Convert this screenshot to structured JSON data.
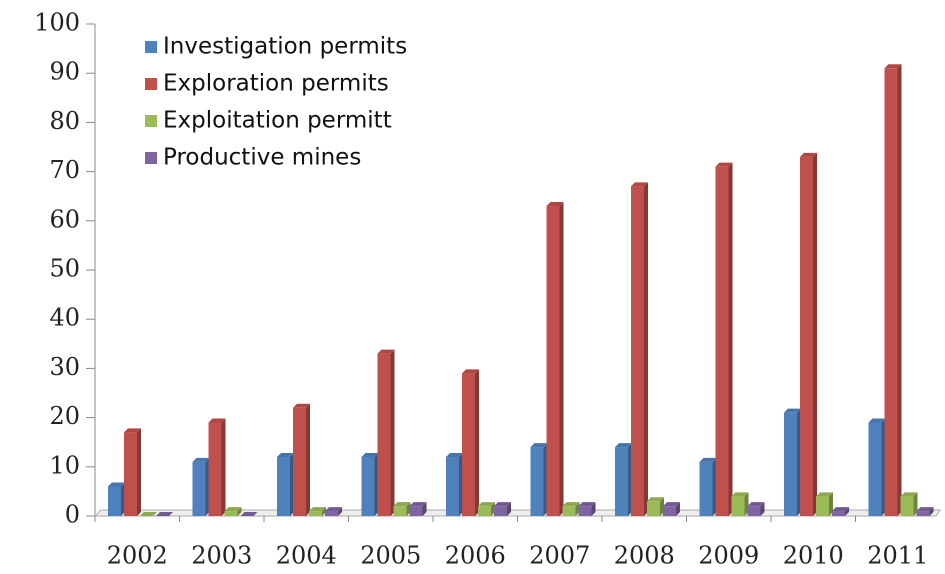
{
  "chart_data": {
    "type": "bar",
    "categories": [
      "2002",
      "2003",
      "2004",
      "2005",
      "2006",
      "2007",
      "2008",
      "2009",
      "2010",
      "2011"
    ],
    "series": [
      {
        "name": "Investigation permits",
        "color": "#4f81bd",
        "values": [
          6,
          11,
          12,
          12,
          12,
          14,
          14,
          11,
          21,
          19
        ]
      },
      {
        "name": "Exploration permits",
        "color": "#c0504d",
        "values": [
          17,
          19,
          22,
          33,
          29,
          63,
          67,
          71,
          73,
          91
        ]
      },
      {
        "name": "Exploitation permitt",
        "color": "#9bbb59",
        "values": [
          0,
          1,
          1,
          2,
          2,
          2,
          3,
          4,
          4,
          4
        ]
      },
      {
        "name": "Productive mines",
        "color": "#8064a2",
        "values": [
          0,
          0,
          1,
          2,
          2,
          2,
          2,
          2,
          1,
          1
        ]
      }
    ],
    "ylim": [
      0,
      100
    ],
    "yticks": [
      0,
      10,
      20,
      30,
      40,
      50,
      60,
      70,
      80,
      90,
      100
    ],
    "legend": "upper left"
  }
}
